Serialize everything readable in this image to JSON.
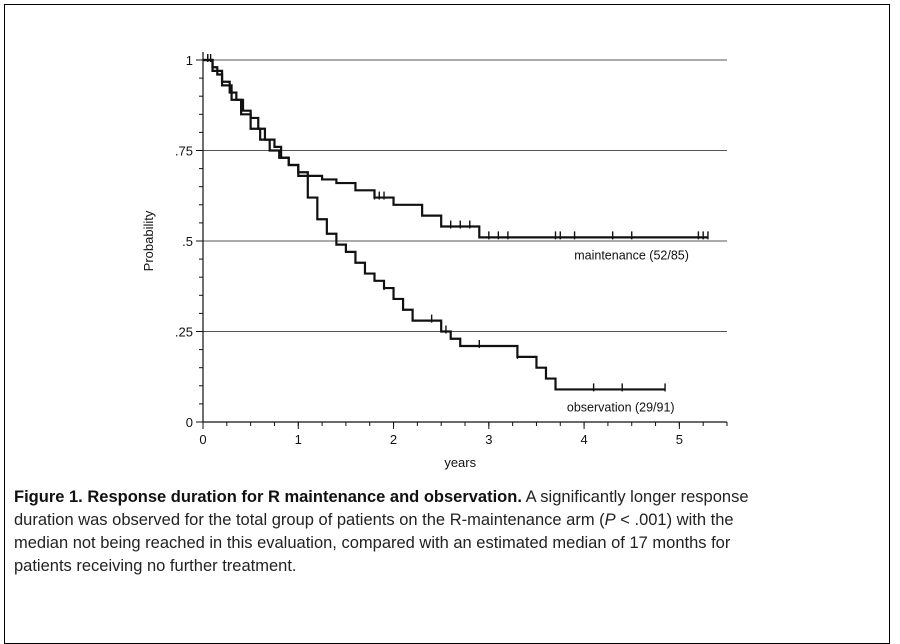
{
  "chart_data": {
    "type": "line",
    "subtype": "kaplan-meier step curve",
    "xlabel": "years",
    "ylabel": "Probability",
    "xlim": [
      0,
      5.5
    ],
    "ylim": [
      0,
      1
    ],
    "x_ticks": [
      0,
      1,
      2,
      3,
      4,
      5
    ],
    "x_tick_labels": [
      "0",
      "1",
      "2",
      "3",
      "4",
      "5"
    ],
    "y_ticks": [
      0,
      0.25,
      0.5,
      0.75,
      1
    ],
    "y_tick_labels": [
      "0",
      ".25",
      ".5",
      ".75",
      "1"
    ],
    "grid": "horizontal lines at y ticks",
    "series": [
      {
        "name": "maintenance (52/85)",
        "x": [
          0,
          0.1,
          0.15,
          0.2,
          0.28,
          0.35,
          0.42,
          0.5,
          0.58,
          0.65,
          0.75,
          0.82,
          0.9,
          1.0,
          1.1,
          1.25,
          1.4,
          1.6,
          1.8,
          2.0,
          2.3,
          2.5,
          2.9,
          5.3
        ],
        "y": [
          1.0,
          0.98,
          0.96,
          0.94,
          0.91,
          0.89,
          0.86,
          0.84,
          0.81,
          0.78,
          0.76,
          0.73,
          0.71,
          0.69,
          0.68,
          0.67,
          0.66,
          0.64,
          0.62,
          0.6,
          0.57,
          0.54,
          0.51,
          0.51
        ],
        "censor_x": [
          0.05,
          0.08,
          1.8,
          1.85,
          1.9,
          2.6,
          2.7,
          2.8,
          3.0,
          3.1,
          3.2,
          3.7,
          3.75,
          3.9,
          4.3,
          4.5,
          5.2,
          5.25,
          5.3
        ]
      },
      {
        "name": "observation (29/91)",
        "x": [
          0,
          0.1,
          0.2,
          0.3,
          0.4,
          0.5,
          0.6,
          0.7,
          0.8,
          0.9,
          1.0,
          1.1,
          1.2,
          1.3,
          1.4,
          1.5,
          1.6,
          1.7,
          1.8,
          1.9,
          2.0,
          2.1,
          2.2,
          2.5,
          2.6,
          2.7,
          3.3,
          3.5,
          3.6,
          3.7,
          4.85
        ],
        "y": [
          1.0,
          0.97,
          0.93,
          0.89,
          0.85,
          0.81,
          0.78,
          0.75,
          0.73,
          0.71,
          0.68,
          0.62,
          0.56,
          0.52,
          0.49,
          0.47,
          0.44,
          0.41,
          0.39,
          0.37,
          0.34,
          0.31,
          0.28,
          0.25,
          0.23,
          0.21,
          0.18,
          0.15,
          0.12,
          0.09,
          0.09
        ],
        "censor_x": [
          0.05,
          1.9,
          2.4,
          2.55,
          2.9,
          3.3,
          4.1,
          4.4,
          4.85
        ]
      }
    ]
  },
  "caption": {
    "title": "Figure 1. Response duration for R maintenance and observation.",
    "text_1": "A significantly longer response duration was observed for the total group of patients on the R-maintenance arm (",
    "p_symbol": "P",
    "text_2": " < .001) with the median not being reached in this evaluation, compared with an estimated median of 17 months for patients receiving no further treatment."
  }
}
